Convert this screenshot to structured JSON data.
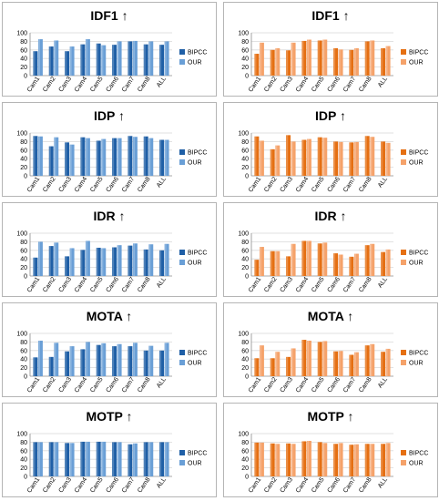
{
  "colors": {
    "blue_dark": "#1f5fa6",
    "blue_light": "#6a9fd6",
    "orange_dark": "#e56f12",
    "orange_light": "#f5a26a",
    "gridline": "#d9d9d9",
    "axis": "#8c8c8c"
  },
  "chart_data": [
    {
      "type": "bar",
      "title": "IDF1 ↑",
      "palette": "blue",
      "categories": [
        "Cam1",
        "Cam2",
        "Cam3",
        "Cam4",
        "Cam5",
        "Cam6",
        "Cam7",
        "Cam8",
        "ALL"
      ],
      "series": [
        {
          "name": "BIPCC",
          "values": [
            57,
            68,
            57,
            73,
            75,
            72,
            80,
            73,
            72
          ]
        },
        {
          "name": "OUR",
          "values": [
            85,
            82,
            68,
            85,
            71,
            80,
            81,
            80,
            80
          ]
        }
      ],
      "ylim": [
        0,
        100
      ],
      "yticks": [
        0,
        20,
        40,
        60,
        80,
        100
      ],
      "legend": "right",
      "grid": true
    },
    {
      "type": "bar",
      "title": "IDF1 ↑",
      "palette": "orange",
      "categories": [
        "Cam1",
        "Cam2",
        "Cam3",
        "Cam4",
        "Cam5",
        "Cam6",
        "Cam7",
        "Cam8",
        "ALL"
      ],
      "series": [
        {
          "name": "BIPCC",
          "values": [
            51,
            60,
            59,
            81,
            82,
            64,
            60,
            80,
            64
          ]
        },
        {
          "name": "OUR",
          "values": [
            77,
            64,
            77,
            84,
            84,
            61,
            64,
            82,
            69
          ]
        }
      ],
      "ylim": [
        0,
        100
      ],
      "yticks": [
        0,
        20,
        40,
        60,
        80,
        100
      ],
      "legend": "right",
      "grid": true
    },
    {
      "type": "bar",
      "title": "IDP ↑",
      "palette": "blue",
      "categories": [
        "Cam1",
        "Cam2",
        "Cam3",
        "Cam4",
        "Cam5",
        "Cam6",
        "Cam7",
        "Cam8",
        "ALL"
      ],
      "series": [
        {
          "name": "BIPCC",
          "values": [
            93,
            69,
            78,
            90,
            82,
            88,
            93,
            92,
            84
          ]
        },
        {
          "name": "OUR",
          "values": [
            92,
            90,
            73,
            88,
            86,
            88,
            91,
            88,
            84
          ]
        }
      ],
      "ylim": [
        0,
        100
      ],
      "yticks": [
        0,
        20,
        40,
        60,
        80,
        100
      ],
      "legend": "right",
      "grid": true
    },
    {
      "type": "bar",
      "title": "IDP ↑",
      "palette": "orange",
      "categories": [
        "Cam1",
        "Cam2",
        "Cam3",
        "Cam4",
        "Cam5",
        "Cam6",
        "Cam7",
        "Cam8",
        "ALL"
      ],
      "series": [
        {
          "name": "BIPCC",
          "values": [
            92,
            62,
            95,
            84,
            90,
            80,
            78,
            93,
            80
          ]
        },
        {
          "name": "OUR",
          "values": [
            82,
            71,
            80,
            86,
            89,
            79,
            79,
            91,
            77
          ]
        }
      ],
      "ylim": [
        0,
        100
      ],
      "yticks": [
        0,
        20,
        40,
        60,
        80,
        100
      ],
      "legend": "right",
      "grid": true
    },
    {
      "type": "bar",
      "title": "IDR ↑",
      "palette": "blue",
      "categories": [
        "Cam1",
        "Cam2",
        "Cam3",
        "Cam4",
        "Cam5",
        "Cam6",
        "Cam7",
        "Cam8",
        "ALL"
      ],
      "series": [
        {
          "name": "BIPCC",
          "values": [
            43,
            70,
            46,
            61,
            66,
            67,
            71,
            62,
            60
          ]
        },
        {
          "name": "OUR",
          "values": [
            80,
            78,
            65,
            82,
            65,
            72,
            76,
            74,
            75
          ]
        }
      ],
      "ylim": [
        0,
        100
      ],
      "yticks": [
        0,
        20,
        40,
        60,
        80,
        100
      ],
      "legend": "right",
      "grid": true
    },
    {
      "type": "bar",
      "title": "IDR ↑",
      "palette": "orange",
      "categories": [
        "Cam1",
        "Cam2",
        "Cam3",
        "Cam4",
        "Cam5",
        "Cam6",
        "Cam7",
        "Cam8",
        "ALL"
      ],
      "series": [
        {
          "name": "BIPCC",
          "values": [
            38,
            58,
            46,
            82,
            76,
            53,
            45,
            72,
            56
          ]
        },
        {
          "name": "OUR",
          "values": [
            68,
            58,
            75,
            82,
            78,
            50,
            52,
            75,
            62
          ]
        }
      ],
      "ylim": [
        0,
        100
      ],
      "yticks": [
        0,
        20,
        40,
        60,
        80,
        100
      ],
      "legend": "right",
      "grid": true
    },
    {
      "type": "bar",
      "title": "MOTA ↑",
      "palette": "blue",
      "categories": [
        "Cam1",
        "Cam2",
        "Cam3",
        "Cam4",
        "Cam5",
        "Cam6",
        "Cam7",
        "Cam8",
        "ALL"
      ],
      "series": [
        {
          "name": "BIPCC",
          "values": [
            44,
            45,
            58,
            63,
            73,
            70,
            70,
            60,
            60
          ]
        },
        {
          "name": "OUR",
          "values": [
            83,
            78,
            70,
            80,
            77,
            75,
            78,
            71,
            78
          ]
        }
      ],
      "ylim": [
        0,
        100
      ],
      "yticks": [
        0,
        20,
        40,
        60,
        80,
        100
      ],
      "legend": "right",
      "grid": true
    },
    {
      "type": "bar",
      "title": "MOTA ↑",
      "palette": "orange",
      "categories": [
        "Cam1",
        "Cam2",
        "Cam3",
        "Cam4",
        "Cam5",
        "Cam6",
        "Cam7",
        "Cam8",
        "ALL"
      ],
      "series": [
        {
          "name": "BIPCC",
          "values": [
            42,
            42,
            45,
            85,
            80,
            58,
            50,
            72,
            57
          ]
        },
        {
          "name": "OUR",
          "values": [
            72,
            57,
            65,
            83,
            82,
            59,
            56,
            75,
            64
          ]
        }
      ],
      "ylim": [
        0,
        100
      ],
      "yticks": [
        0,
        20,
        40,
        60,
        80,
        100
      ],
      "legend": "right",
      "grid": true
    },
    {
      "type": "bar",
      "title": "MOTP ↑",
      "palette": "blue",
      "categories": [
        "Cam1",
        "Cam2",
        "Cam3",
        "Cam4",
        "Cam5",
        "Cam6",
        "Cam7",
        "Cam8",
        "ALL"
      ],
      "series": [
        {
          "name": "BIPCC",
          "values": [
            80,
            80,
            78,
            81,
            81,
            80,
            75,
            80,
            80
          ]
        },
        {
          "name": "OUR",
          "values": [
            80,
            80,
            78,
            81,
            81,
            80,
            77,
            80,
            80
          ]
        }
      ],
      "ylim": [
        0,
        100
      ],
      "yticks": [
        0,
        20,
        40,
        60,
        80,
        100
      ],
      "legend": "right",
      "grid": true
    },
    {
      "type": "bar",
      "title": "MOTP ↑",
      "palette": "orange",
      "categories": [
        "Cam1",
        "Cam2",
        "Cam3",
        "Cam4",
        "Cam5",
        "Cam6",
        "Cam7",
        "Cam8",
        "ALL"
      ],
      "series": [
        {
          "name": "BIPCC",
          "values": [
            79,
            77,
            77,
            82,
            80,
            76,
            74,
            76,
            76
          ]
        },
        {
          "name": "OUR",
          "values": [
            79,
            76,
            76,
            83,
            78,
            78,
            75,
            76,
            78
          ]
        }
      ],
      "ylim": [
        0,
        100
      ],
      "yticks": [
        0,
        20,
        40,
        60,
        80,
        100
      ],
      "legend": "right",
      "grid": true
    }
  ]
}
